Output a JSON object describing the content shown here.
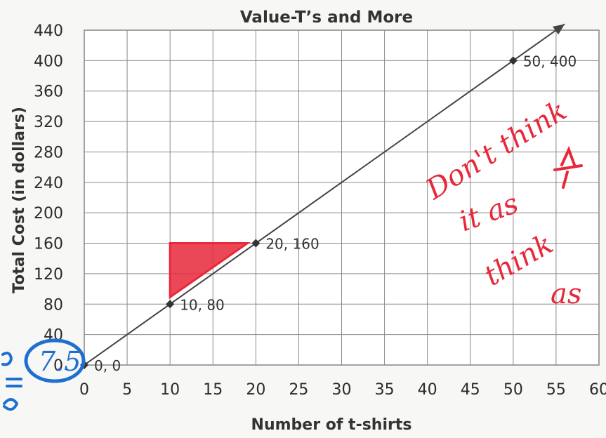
{
  "chart_data": {
    "type": "line",
    "title": "Value-T’s and More",
    "xlabel": "Number of t-shirts",
    "ylabel": "Total Cost (in dollars)",
    "xlim": [
      0,
      60
    ],
    "ylim": [
      0,
      440
    ],
    "x_ticks": [
      0,
      5,
      10,
      15,
      20,
      25,
      30,
      35,
      40,
      45,
      50,
      55,
      60
    ],
    "y_ticks": [
      0,
      40,
      80,
      120,
      160,
      200,
      240,
      280,
      320,
      360,
      400,
      440
    ],
    "grid": true,
    "series": [
      {
        "points": [
          {
            "x": 0,
            "y": 0,
            "label": "0, 0"
          },
          {
            "x": 10,
            "y": 80,
            "label": "10, 80"
          },
          {
            "x": 20,
            "y": 160,
            "label": "20, 160"
          },
          {
            "x": 50,
            "y": 400,
            "label": "50, 400"
          }
        ],
        "line_extends_to": {
          "x": 56,
          "y": 448
        },
        "color": "#444444"
      }
    ]
  },
  "annotations": {
    "red_color": "#e8283a",
    "blue_color": "#1f6fd1",
    "red_notes": [
      "Don't think",
      "it as",
      "think",
      "as"
    ],
    "blue_circled": "7.5"
  }
}
